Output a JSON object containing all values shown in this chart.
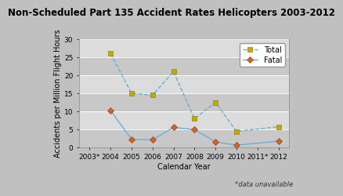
{
  "title": "Non-Scheduled Part 135 Accident Rates Helicopters 2003-2012",
  "xlabel": "Calendar Year",
  "ylabel": "Accidents per Million Flight Hours",
  "xlabels": [
    "2003*",
    "2004",
    "2005",
    "2006",
    "2007",
    "2008",
    "2009",
    "2010",
    "2011*",
    "2012"
  ],
  "x_indices": [
    0,
    1,
    2,
    3,
    4,
    5,
    6,
    7,
    8,
    9
  ],
  "total_values": [
    null,
    26.0,
    15.0,
    14.5,
    21.0,
    8.0,
    12.5,
    4.5,
    null,
    5.8
  ],
  "fatal_values": [
    null,
    10.3,
    2.3,
    2.2,
    5.6,
    5.0,
    1.6,
    0.7,
    null,
    1.8
  ],
  "ylim": [
    0,
    30
  ],
  "yticks": [
    0,
    5,
    10,
    15,
    20,
    25,
    30
  ],
  "total_color": "#c8a800",
  "fatal_color": "#d4622a",
  "line_color": "#6baed6",
  "bg_color": "#c0c0c0",
  "plot_bg": "#d4d4d4",
  "stripe_light": "#dcdcdc",
  "stripe_dark": "#c8c8c8",
  "note": "*data unavailable",
  "title_fontsize": 8.5,
  "axis_fontsize": 7,
  "tick_fontsize": 6.5,
  "legend_fontsize": 7
}
